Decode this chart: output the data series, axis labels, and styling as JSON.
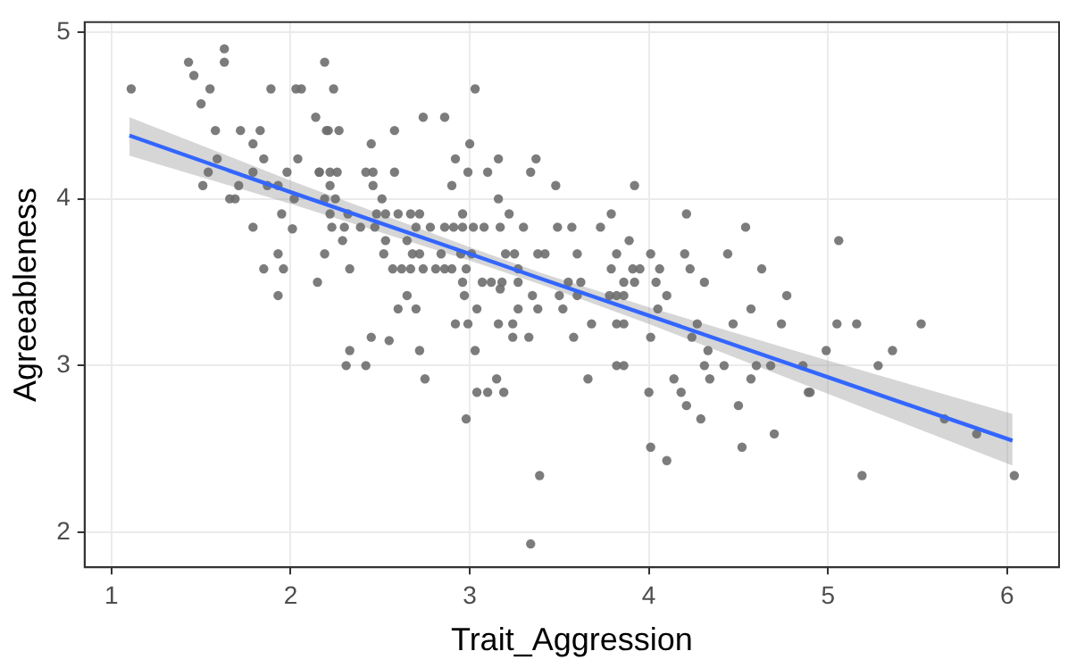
{
  "chart_data": {
    "type": "scatter",
    "xlabel": "Trait_Aggression",
    "ylabel": "Agreeableness",
    "xlim": [
      0.85,
      6.29
    ],
    "ylim": [
      1.79,
      5.06
    ],
    "xticks": [
      1,
      2,
      3,
      4,
      5,
      6
    ],
    "yticks": [
      2,
      3,
      4,
      5
    ],
    "grid": true,
    "legend": false,
    "series": [
      {
        "marker": "circle",
        "color": "#6e6e6e",
        "x": [
          1.11,
          1.43,
          1.63,
          1.63,
          1.46,
          1.55,
          1.5,
          1.89,
          2.03,
          2.06,
          2.19,
          2.14,
          1.58,
          1.72,
          1.83,
          2.2,
          1.79,
          1.59,
          1.85,
          2.04,
          1.54,
          1.79,
          1.98,
          2.16,
          2.16,
          1.51,
          1.71,
          1.87,
          1.93,
          1.66,
          1.69,
          2.02,
          1.95,
          1.79,
          2.01,
          1.93,
          2.19,
          1.85,
          1.96,
          2.15,
          1.93,
          2.24,
          3.03,
          2.74,
          2.86,
          2.21,
          2.27,
          2.58,
          2.45,
          3.0,
          2.92,
          3.16,
          3.37,
          2.22,
          2.26,
          2.42,
          2.46,
          2.58,
          2.99,
          3.1,
          3.34,
          2.22,
          2.46,
          2.9,
          3.48,
          2.19,
          2.25,
          2.51,
          3.16,
          2.22,
          2.32,
          2.48,
          2.53,
          2.6,
          2.67,
          2.72,
          2.96,
          3.22,
          2.23,
          2.3,
          2.39,
          2.47,
          2.7,
          2.78,
          2.86,
          2.91,
          2.96,
          3.02,
          3.08,
          3.17,
          3.3,
          3.49,
          2.29,
          2.53,
          2.65,
          2.52,
          2.68,
          2.72,
          2.84,
          2.95,
          3.01,
          3.2,
          3.25,
          3.38,
          3.42,
          2.33,
          2.57,
          2.62,
          2.67,
          2.74,
          2.81,
          2.86,
          2.9,
          2.98,
          3.27,
          2.96,
          3.07,
          3.12,
          3.18,
          3.27,
          3.17,
          2.65,
          2.97,
          3.35,
          3.5,
          2.6,
          2.7,
          3.04,
          3.27,
          3.38,
          2.92,
          2.99,
          3.16,
          3.24,
          2.45,
          2.55,
          3.24,
          3.33,
          2.33,
          2.72,
          3.03,
          2.31,
          2.42,
          2.75,
          3.15,
          3.04,
          3.1,
          3.19,
          2.98,
          3.39,
          3.34,
          3.92,
          3.79,
          4.21,
          3.57,
          3.73,
          4.54,
          3.89,
          3.6,
          3.82,
          4.01,
          4.2,
          4.44,
          3.79,
          3.91,
          3.95,
          4.06,
          4.23,
          4.63,
          3.55,
          3.62,
          3.86,
          3.92,
          4.04,
          4.31,
          3.6,
          3.78,
          3.82,
          3.86,
          4.1,
          4.77,
          3.52,
          4.05,
          4.57,
          3.68,
          3.82,
          3.86,
          4.27,
          4.47,
          4.74,
          3.58,
          4.01,
          4.24,
          4.33,
          3.82,
          3.86,
          4.31,
          4.42,
          4.6,
          4.68,
          4.86,
          3.66,
          4.14,
          4.34,
          4.57,
          4.0,
          4.18,
          4.89,
          4.21,
          4.5,
          4.29,
          4.7,
          4.01,
          4.52,
          4.1,
          5.06,
          5.05,
          5.16,
          5.52,
          4.99,
          5.36,
          5.28,
          4.9,
          5.65,
          5.83,
          5.19,
          6.04
        ],
        "values": [
          4.66,
          4.82,
          4.9,
          4.82,
          4.74,
          4.66,
          4.57,
          4.66,
          4.66,
          4.66,
          4.82,
          4.49,
          4.41,
          4.41,
          4.41,
          4.41,
          4.33,
          4.24,
          4.24,
          4.24,
          4.16,
          4.16,
          4.16,
          4.16,
          4.16,
          4.08,
          4.08,
          4.08,
          4.08,
          4.0,
          4.0,
          4.0,
          3.91,
          3.83,
          3.82,
          3.67,
          3.67,
          3.58,
          3.58,
          3.5,
          3.42,
          4.66,
          4.66,
          4.49,
          4.49,
          4.41,
          4.41,
          4.41,
          4.33,
          4.33,
          4.24,
          4.24,
          4.24,
          4.16,
          4.16,
          4.16,
          4.16,
          4.16,
          4.16,
          4.16,
          4.16,
          4.08,
          4.08,
          4.08,
          4.08,
          4.0,
          4.0,
          4.0,
          4.0,
          3.91,
          3.91,
          3.91,
          3.91,
          3.91,
          3.91,
          3.91,
          3.91,
          3.91,
          3.83,
          3.83,
          3.83,
          3.83,
          3.83,
          3.83,
          3.83,
          3.83,
          3.83,
          3.83,
          3.83,
          3.83,
          3.83,
          3.83,
          3.75,
          3.75,
          3.75,
          3.67,
          3.67,
          3.67,
          3.67,
          3.67,
          3.67,
          3.67,
          3.67,
          3.67,
          3.67,
          3.58,
          3.58,
          3.58,
          3.58,
          3.58,
          3.58,
          3.58,
          3.58,
          3.58,
          3.58,
          3.5,
          3.5,
          3.5,
          3.5,
          3.5,
          3.46,
          3.42,
          3.42,
          3.42,
          3.42,
          3.34,
          3.34,
          3.34,
          3.34,
          3.34,
          3.25,
          3.25,
          3.25,
          3.25,
          3.17,
          3.15,
          3.17,
          3.17,
          3.09,
          3.09,
          3.09,
          3.0,
          3.0,
          2.92,
          2.92,
          2.84,
          2.84,
          2.84,
          2.68,
          2.34,
          1.93,
          4.08,
          3.91,
          3.91,
          3.83,
          3.83,
          3.83,
          3.75,
          3.67,
          3.67,
          3.67,
          3.67,
          3.67,
          3.58,
          3.58,
          3.58,
          3.58,
          3.58,
          3.58,
          3.5,
          3.5,
          3.5,
          3.5,
          3.5,
          3.5,
          3.42,
          3.42,
          3.42,
          3.42,
          3.42,
          3.42,
          3.34,
          3.34,
          3.34,
          3.25,
          3.25,
          3.25,
          3.25,
          3.25,
          3.25,
          3.17,
          3.17,
          3.17,
          3.09,
          3.0,
          3.0,
          3.0,
          3.0,
          3.0,
          3.0,
          3.0,
          2.92,
          2.92,
          2.92,
          2.92,
          2.84,
          2.84,
          2.84,
          2.76,
          2.76,
          2.68,
          2.59,
          2.51,
          2.51,
          2.43,
          3.75,
          3.25,
          3.25,
          3.25,
          3.09,
          3.09,
          3.0,
          2.84,
          2.68,
          2.59,
          2.34,
          2.34
        ]
      },
      {
        "type": "line",
        "color": "#3366ff",
        "x": [
          1.1,
          2,
          3,
          3.4,
          4,
          5,
          6.03
        ],
        "values": [
          4.38,
          4.04,
          3.67,
          3.52,
          3.3,
          2.93,
          2.55
        ],
        "lower": [
          4.26,
          3.97,
          3.63,
          3.485,
          3.25,
          2.83,
          2.4
        ],
        "upper": [
          4.49,
          4.11,
          3.71,
          3.555,
          3.35,
          3.03,
          2.71
        ]
      }
    ]
  }
}
